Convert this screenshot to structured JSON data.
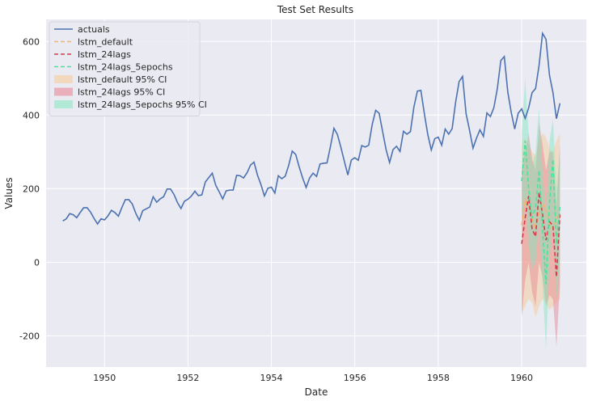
{
  "chart_data": {
    "type": "line",
    "title": "Test Set Results",
    "xlabel": "Date",
    "ylabel": "Values",
    "xlim": [
      1948.6,
      1961.55
    ],
    "ylim": [
      -285,
      660
    ],
    "x_ticks": [
      1950,
      1952,
      1954,
      1956,
      1958,
      1960
    ],
    "y_ticks": [
      -200,
      0,
      200,
      400,
      600
    ],
    "grid": true,
    "legend_position": "top-left",
    "series": [
      {
        "name": "actuals",
        "style": "solid",
        "color": "#4c72b0",
        "x_start": 1949.0,
        "x_step_months": 1,
        "values": [
          112,
          118,
          132,
          129,
          121,
          135,
          148,
          148,
          136,
          119,
          104,
          118,
          115,
          126,
          141,
          135,
          125,
          149,
          170,
          170,
          158,
          133,
          114,
          140,
          145,
          150,
          178,
          163,
          172,
          178,
          199,
          199,
          184,
          162,
          146,
          166,
          171,
          180,
          193,
          181,
          183,
          218,
          230,
          242,
          209,
          191,
          172,
          194,
          196,
          196,
          236,
          235,
          229,
          243,
          264,
          272,
          237,
          211,
          180,
          201,
          204,
          188,
          235,
          227,
          234,
          264,
          302,
          293,
          259,
          229,
          203,
          229,
          242,
          233,
          267,
          269,
          270,
          315,
          364,
          347,
          312,
          274,
          237,
          278,
          284,
          277,
          317,
          313,
          318,
          374,
          413,
          405,
          355,
          306,
          271,
          306,
          315,
          301,
          356,
          348,
          355,
          422,
          465,
          467,
          404,
          347,
          305,
          336,
          340,
          318,
          362,
          348,
          363,
          435,
          491,
          505,
          404,
          359,
          310,
          337,
          360,
          342,
          406,
          396,
          420,
          472,
          548,
          559,
          463,
          407,
          362,
          405,
          417,
          391,
          419,
          461,
          472,
          535,
          622,
          606,
          508,
          461,
          390,
          432
        ]
      },
      {
        "name": "lstm_default",
        "style": "dashed",
        "color": "#f7b26b",
        "x_start": 1960.0,
        "x_step_months": 1,
        "values": [
          100,
          170,
          150,
          120,
          90,
          130,
          160,
          140,
          110,
          90,
          120,
          130
        ]
      },
      {
        "name": "lstm_24lags",
        "style": "dashed",
        "color": "#d9384a",
        "x_start": 1960.0,
        "x_step_months": 1,
        "values": [
          50,
          120,
          180,
          90,
          70,
          190,
          130,
          60,
          110,
          100,
          -40,
          130
        ]
      },
      {
        "name": "lstm_24lags_5epochs",
        "style": "dashed",
        "color": "#4be39a",
        "x_start": 1960.0,
        "x_step_months": 1,
        "values": [
          220,
          330,
          200,
          120,
          150,
          250,
          90,
          -60,
          160,
          280,
          50,
          150
        ]
      }
    ],
    "bands": [
      {
        "name": "lstm_default 95% CI",
        "color": "#f7c98f",
        "x_start": 1960.0,
        "x_step_months": 1,
        "lower": [
          -140,
          -120,
          -100,
          -110,
          -150,
          -120,
          -100,
          -110,
          -130,
          -120,
          -110,
          -100
        ],
        "upper": [
          320,
          340,
          320,
          300,
          290,
          330,
          350,
          340,
          310,
          300,
          330,
          350
        ]
      },
      {
        "name": "lstm_24lags 95% CI",
        "color": "#e8808f",
        "x_start": 1960.0,
        "x_step_months": 1,
        "lower": [
          -150,
          -50,
          0,
          -80,
          -120,
          0,
          -40,
          -120,
          -90,
          -100,
          -230,
          -60
        ],
        "upper": [
          250,
          300,
          350,
          280,
          250,
          380,
          320,
          250,
          300,
          300,
          150,
          320
        ]
      },
      {
        "name": "lstm_24lags_5epochs 95% CI",
        "color": "#7fe8c0",
        "x_start": 1960.0,
        "x_step_months": 1,
        "lower": [
          100,
          180,
          50,
          -20,
          0,
          100,
          -60,
          -240,
          0,
          120,
          -100,
          0
        ],
        "upper": [
          350,
          500,
          350,
          260,
          300,
          420,
          250,
          130,
          330,
          390,
          200,
          300
        ]
      }
    ]
  }
}
